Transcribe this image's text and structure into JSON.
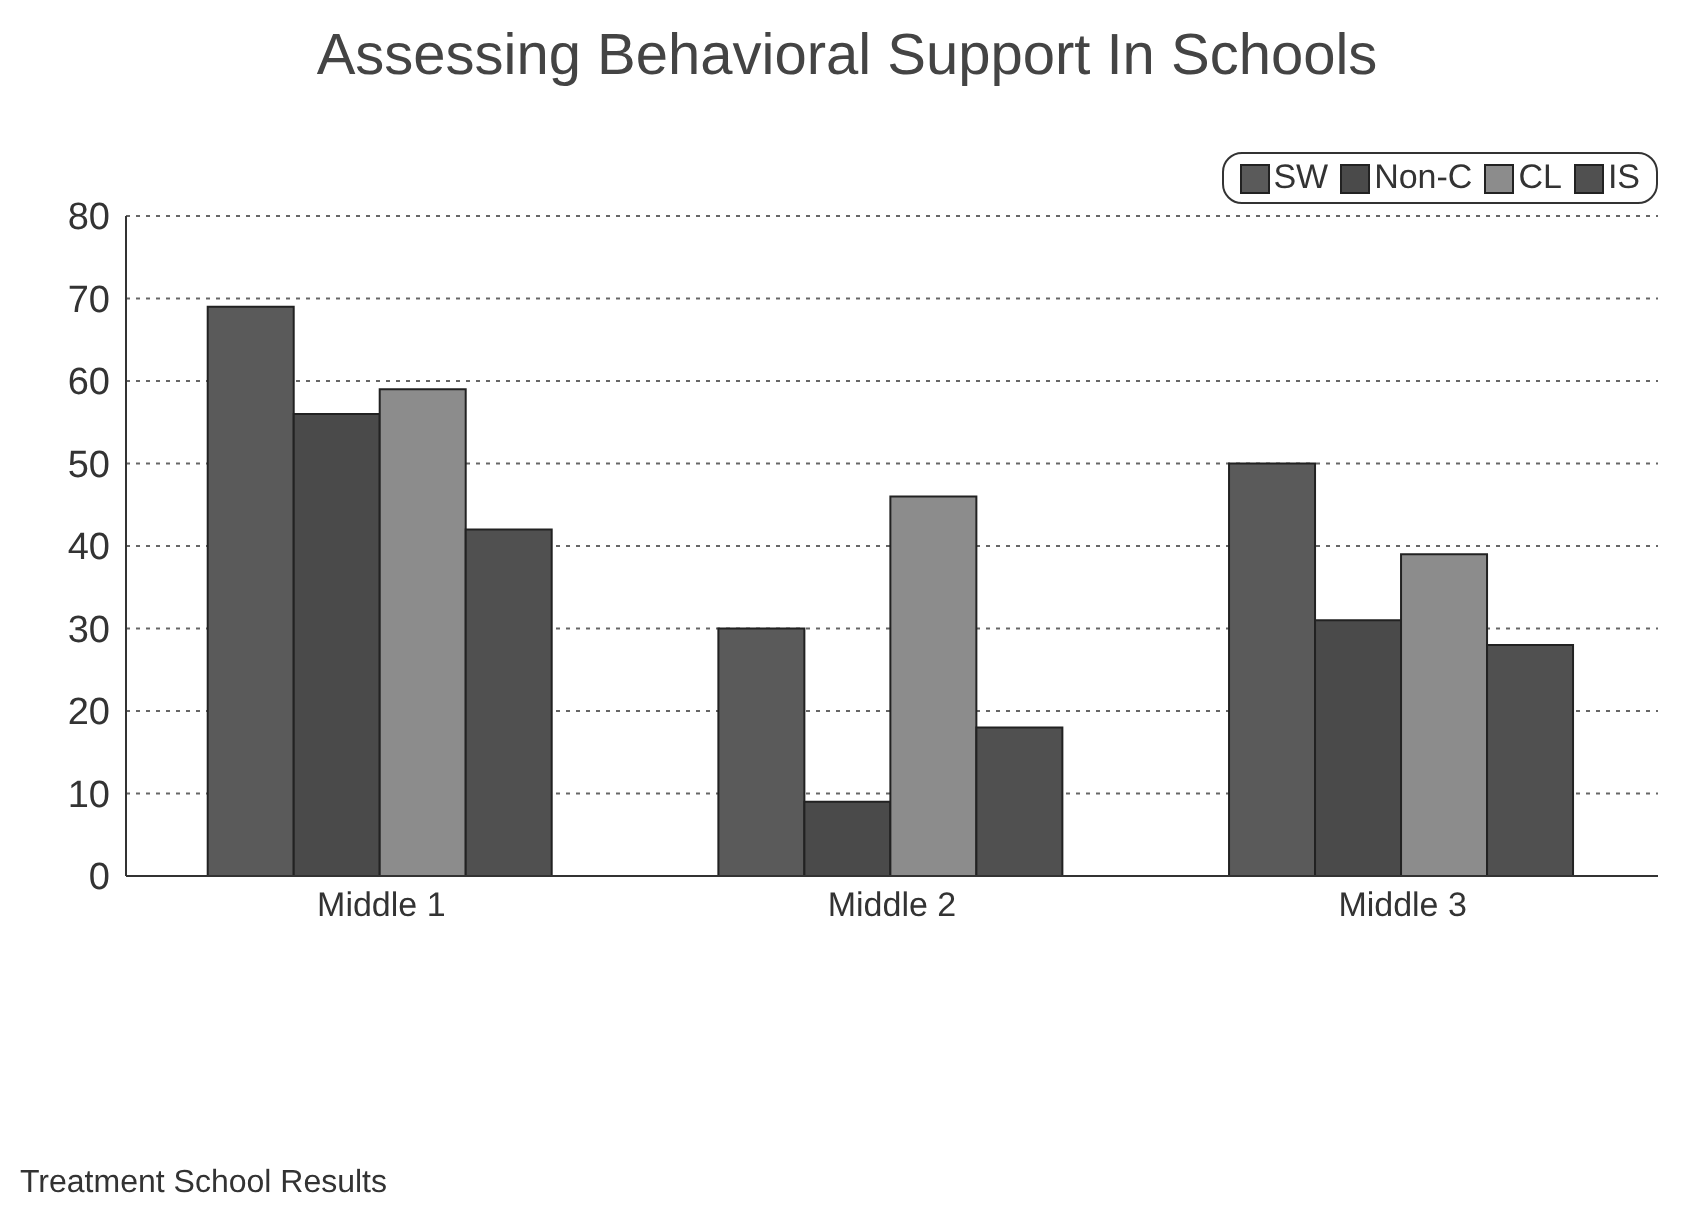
{
  "chart_data": {
    "type": "bar",
    "title": "Assessing Behavioral Support In Schools",
    "categories": [
      "Middle 1",
      "Middle 2",
      "Middle 3"
    ],
    "series": [
      {
        "name": "SW",
        "color": "#5a5a5a",
        "values": [
          69,
          30,
          50
        ]
      },
      {
        "name": "Non-C",
        "color": "#4a4a4a",
        "values": [
          56,
          9,
          31
        ]
      },
      {
        "name": "CL",
        "color": "#8c8c8c",
        "values": [
          59,
          46,
          39
        ]
      },
      {
        "name": "IS",
        "color": "#505050",
        "values": [
          42,
          18,
          28
        ]
      }
    ],
    "ylim": [
      0,
      80
    ],
    "yticks": [
      0,
      10,
      20,
      30,
      40,
      50,
      60,
      70,
      80
    ],
    "grid": "y",
    "legend": "top right",
    "annotations": [
      "Treatment School Results"
    ]
  }
}
